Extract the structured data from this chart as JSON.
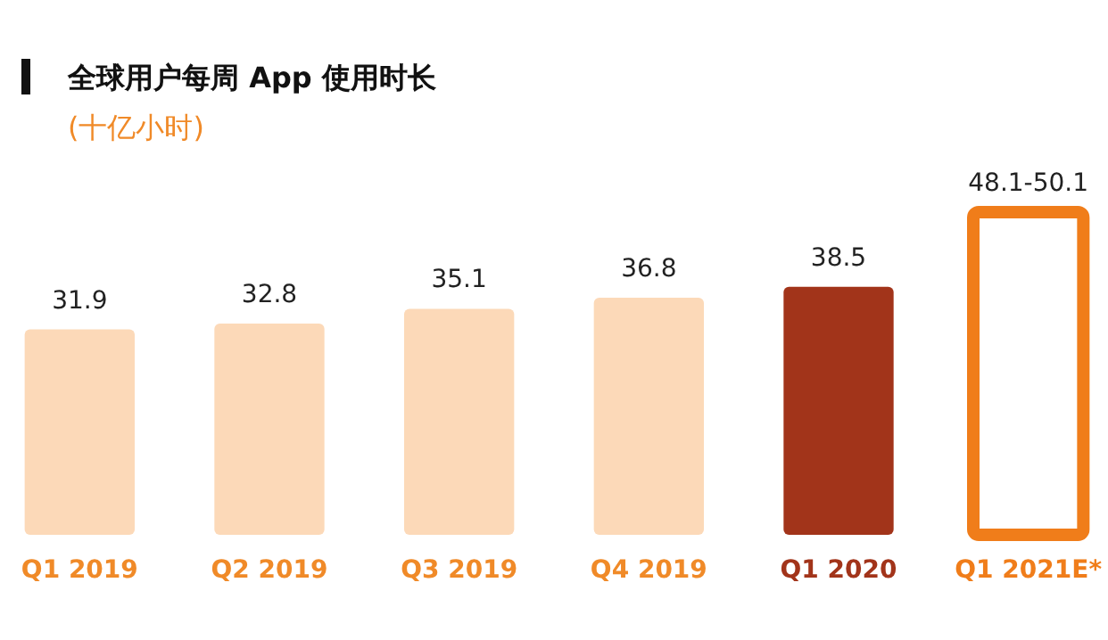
{
  "chart_data": {
    "type": "bar",
    "title": "全球用户每周 App 使用时长",
    "subtitle": "(十亿小时)",
    "categories": [
      "Q1 2019",
      "Q2 2019",
      "Q3 2019",
      "Q4 2019",
      "Q1 2020",
      "Q1 2021E*"
    ],
    "series": [
      {
        "colors": [
          "#fcd9b8",
          "#fcd9b8",
          "#fcd9b8",
          "#fcd9b8",
          "#a2341a",
          null
        ],
        "values": [
          31.9,
          32.8,
          35.1,
          36.8,
          38.5,
          null
        ],
        "value_labels": [
          "31.9",
          "32.8",
          "35.1",
          "36.8",
          "38.5",
          null
        ]
      },
      {
        "color": "#f07d1a",
        "values": [
          null,
          null,
          null,
          null,
          null,
          50.1
        ],
        "value_labels": [
          null,
          null,
          null,
          null,
          null,
          "48.1-50.1"
        ]
      }
    ],
    "ylim": [
      0,
      50.1
    ],
    "tick_labels": "x"
  }
}
